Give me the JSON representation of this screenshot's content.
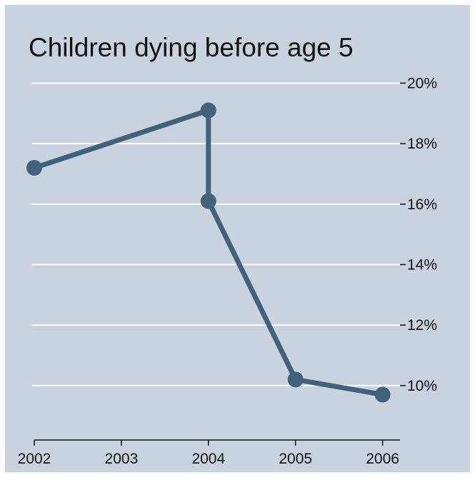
{
  "chart_data": {
    "type": "line",
    "title": "Children dying before age 5",
    "xlabel": "",
    "ylabel": "",
    "x_ticks": [
      "2002",
      "2003",
      "2004",
      "2005",
      "2006"
    ],
    "y_ticks": [
      "10%",
      "12%",
      "14%",
      "16%",
      "18%",
      "20%"
    ],
    "xlim": [
      2002,
      2006.2
    ],
    "ylim": [
      8.2,
      20.6
    ],
    "series": [
      {
        "x": [
          2002,
          2004,
          2004,
          2005,
          2006
        ],
        "y": [
          17.2,
          19.1,
          16.1,
          10.2,
          9.7
        ]
      }
    ],
    "grid": true,
    "y_axis_position": "right",
    "colors": {
      "background": "#c9d3de",
      "line": "#41627a",
      "grid": "#ffffff",
      "axis": "#111111"
    }
  }
}
